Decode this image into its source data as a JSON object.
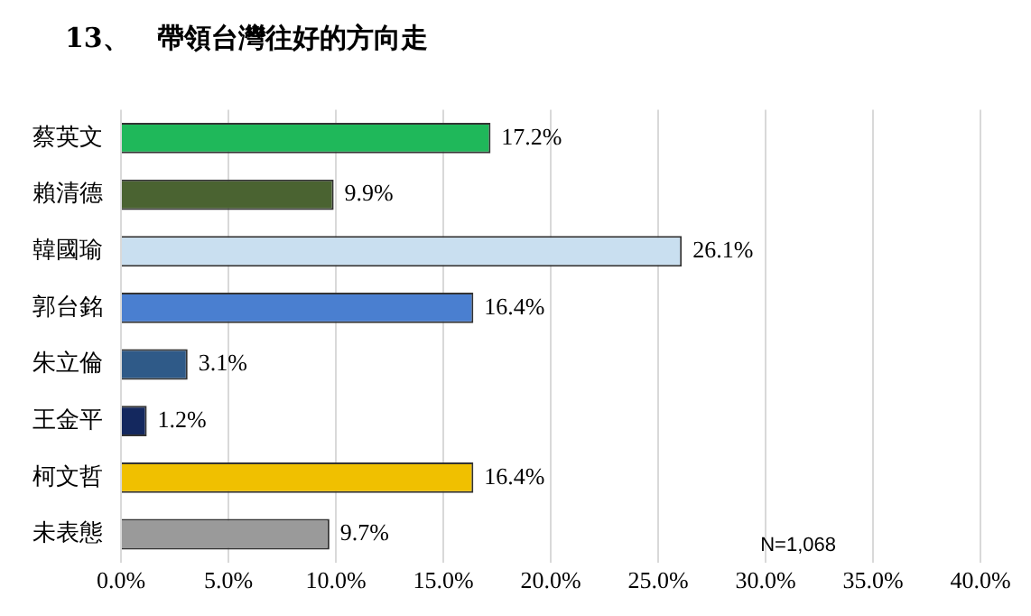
{
  "chart_data": {
    "type": "bar",
    "orientation": "horizontal",
    "title": "13、　帶領台灣往好的方向走",
    "categories": [
      "蔡英文",
      "賴清德",
      "韓國瑜",
      "郭台銘",
      "朱立倫",
      "王金平",
      "柯文哲",
      "未表態"
    ],
    "values": [
      17.2,
      9.9,
      26.1,
      16.4,
      3.1,
      1.2,
      16.4,
      9.7
    ],
    "value_labels": [
      "17.2%",
      "9.9%",
      "26.1%",
      "16.4%",
      "3.1%",
      "1.2%",
      "16.4%",
      "9.7%"
    ],
    "colors": [
      "#1fb85a",
      "#4a6331",
      "#c9dff0",
      "#4a7fd0",
      "#2f5a88",
      "#14285e",
      "#f0c000",
      "#9a9a9a"
    ],
    "xlim": [
      0,
      40
    ],
    "xticks": [
      {
        "value": 0,
        "label": "0.0%"
      },
      {
        "value": 5,
        "label": "5.0%"
      },
      {
        "value": 10,
        "label": "10.0%"
      },
      {
        "value": 15,
        "label": "15.0%"
      },
      {
        "value": 20,
        "label": "20.0%"
      },
      {
        "value": 25,
        "label": "25.0%"
      },
      {
        "value": 30,
        "label": "30.0%"
      },
      {
        "value": 35,
        "label": "35.0%"
      },
      {
        "value": 40,
        "label": "40.0%"
      }
    ],
    "grid": "x",
    "legend": false,
    "annotations": [
      "N=1,068"
    ]
  }
}
